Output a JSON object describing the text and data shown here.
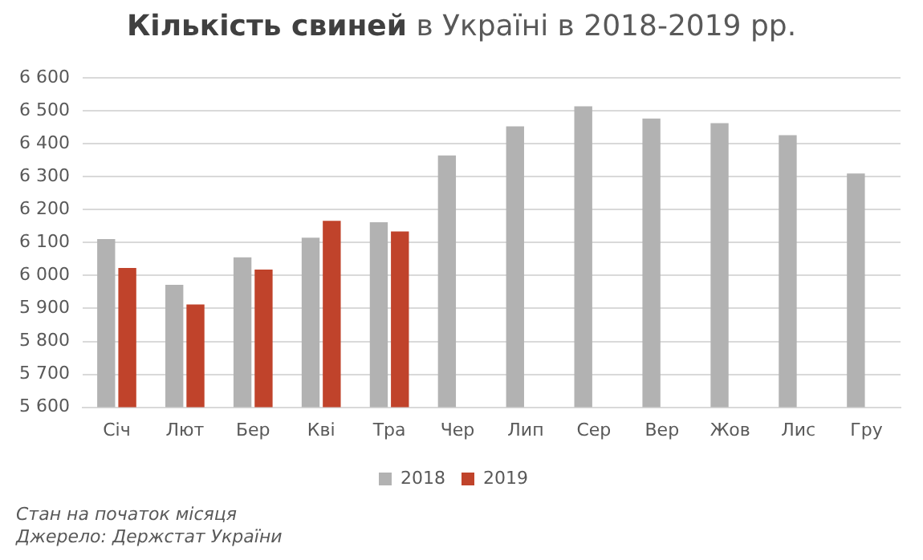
{
  "chart_data": {
    "type": "bar",
    "title": "Кількість свиней в Україні в 2018-2019 рр.",
    "categories": [
      "Січ",
      "Лют",
      "Бер",
      "Кві",
      "Тра",
      "Чер",
      "Лип",
      "Сер",
      "Вер",
      "Жов",
      "Лис",
      "Гру"
    ],
    "series": [
      {
        "name": "2018",
        "color": "#b2b2b2",
        "values": [
          6111,
          5972,
          6055,
          6115,
          6162,
          6365,
          6453,
          6514,
          6477,
          6463,
          6426,
          6310
        ]
      },
      {
        "name": "2019",
        "color": "#c0432b",
        "values": [
          6023,
          5912,
          6018,
          6166,
          6134,
          null,
          null,
          null,
          null,
          null,
          null,
          null
        ]
      }
    ],
    "ylim": [
      5600,
      6600
    ],
    "yticks": [
      {
        "value": 5600,
        "label": "5 600"
      },
      {
        "value": 5700,
        "label": "5 700"
      },
      {
        "value": 5800,
        "label": "5 800"
      },
      {
        "value": 5900,
        "label": "5 900"
      },
      {
        "value": 6000,
        "label": "6 000"
      },
      {
        "value": 6100,
        "label": "6 100"
      },
      {
        "value": 6200,
        "label": "6 200"
      },
      {
        "value": 6300,
        "label": "6 300"
      },
      {
        "value": 6400,
        "label": "6 400"
      },
      {
        "value": 6500,
        "label": "6 500"
      },
      {
        "value": 6600,
        "label": "6 600"
      }
    ],
    "grid": "y",
    "legend": "bottom",
    "annotations": [
      "Стан на початок місяця",
      "Джерело: Держстат України"
    ]
  }
}
